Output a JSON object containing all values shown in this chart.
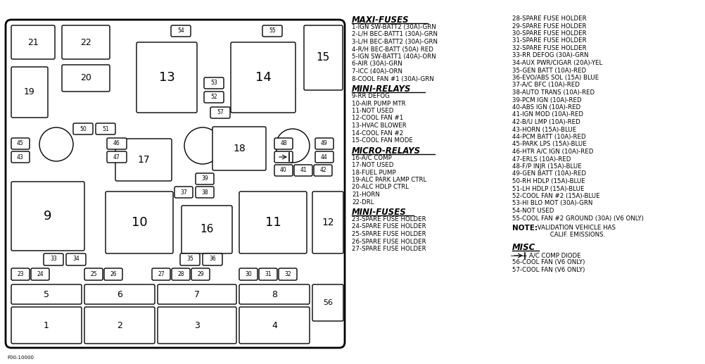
{
  "bg_color": "#ffffff",
  "maxi_fuses_title": "MAXI-FUSES",
  "maxi_fuses": [
    "1-IGN SW-BATT2 (30A)-GRN",
    "2-L/H BEC-BATT1 (30A)-GRN",
    "3-L/H BEC-BATT2 (30A)-GRN",
    "4-R/H BEC-BATT (50A) RED",
    "5-IGN SW-BATT1 (40A)-ORN",
    "6-AIR (30A)-GRN",
    "7-ICC (40A)-ORN",
    "8-COOL FAN #1 (30A)-GRN"
  ],
  "mini_relays_title": "MINI-RELAYS",
  "mini_relays": [
    "9-RR DEFOG",
    "10-AIR PUMP MTR",
    "11-NOT USED",
    "12-COOL FAN #1",
    "13-HVAC BLOWER",
    "14-COOL FAN #2",
    "15-COOL FAN MODE"
  ],
  "micro_relays_title": "MICRO-RELAYS",
  "micro_relays": [
    "16-A/C COMP",
    "17-NOT USED",
    "18-FUEL PUMP",
    "19-ALC PARK LAMP CTRL",
    "20-ALC HDLP CTRL",
    "21-HORN",
    "22-DRL"
  ],
  "mini_fuses_title2": "MINI-FUSES",
  "mini_fuses2": [
    "23-SPARE FUSE HOLDER",
    "24-SPARE FUSE HOLDER",
    "25-SPARE FUSE HOLDER",
    "26-SPARE FUSE HOLDER",
    "27-SPARE FUSE HOLDER"
  ],
  "right_col1": [
    "28-SPARE FUSE HOLDER",
    "29-SPARE FUSE HOLDER",
    "30-SPARE FUSE HOLDER",
    "31-SPARE FUSE HOLDER",
    "32-SPARE FUSE HOLDER",
    "33-RR DEFOG (30A)-GRN",
    "34-AUX PWR/CIGAR (20A)-YEL",
    "35-GEN BATT (10A)-RED",
    "36-EVO/ABS SOL (15A) BLUE",
    "37-A/C BFC (10A)-RED",
    "38-AUTO TRANS (10A)-RED",
    "39-PCM IGN (10A)-RED",
    "40-ABS IGN (10A)-RED",
    "41-IGN MOD (10A)-RED",
    "42-B/U LMP (10A)-RED",
    "43-HORN (15A)-BLUE",
    "44-PCM BATT (10A)-RED",
    "45-PARK LPS (15A)-BLUE",
    "46-HTR A/C IGN (10A)-RED",
    "47-ERLS (10A)-RED",
    "48-F/P INJR (15A)-BLUE",
    "49-GEN BATT (10A)-RED",
    "50-RH HDLP (15A)-BLUE",
    "51-LH HDLP (15A)-BLUE",
    "52-COOL FAN #2 (15A)-BLUE",
    "53-HI BLO MOT (30A)-GRN",
    "54-NOT USED",
    "55-COOL FAN #2 GROUND (30A) (V6 ONLY)"
  ],
  "misc_title": "MISC",
  "misc_lines": [
    "56-COOL FAN (V6 ONLY)",
    "57-COOL FAN (V6 ONLY)"
  ]
}
